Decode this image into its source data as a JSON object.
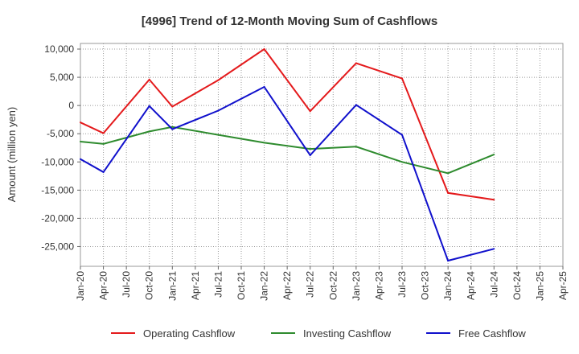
{
  "chart_data": {
    "type": "line",
    "title": "[4996]  Trend of 12-Month Moving Sum of Cashflows",
    "xlabel": "",
    "ylabel": "Amount (million yen)",
    "categories": [
      "Jan-20",
      "Apr-20",
      "Jul-20",
      "Oct-20",
      "Jan-21",
      "Apr-21",
      "Jul-21",
      "Oct-21",
      "Jan-22",
      "Apr-22",
      "Jul-22",
      "Oct-22",
      "Jan-23",
      "Apr-23",
      "Jul-23",
      "Oct-23",
      "Jan-24",
      "Apr-24",
      "Jul-24",
      "Oct-24",
      "Jan-25",
      "Apr-25"
    ],
    "yticks": [
      {
        "value": 10000,
        "label": "10,000"
      },
      {
        "value": 5000,
        "label": "5,000"
      },
      {
        "value": 0,
        "label": "0"
      },
      {
        "value": -5000,
        "label": "-5,000"
      },
      {
        "value": -10000,
        "label": "-10,000"
      },
      {
        "value": -15000,
        "label": "-15,000"
      },
      {
        "value": -20000,
        "label": "-20,000"
      },
      {
        "value": -25000,
        "label": "-25,000"
      }
    ],
    "ylim": [
      -28500,
      11000
    ],
    "grid": true,
    "legend_position": "bottom",
    "series": [
      {
        "name": "Operating Cashflow",
        "color": "#e41a1c",
        "values": [
          -3000,
          -4900,
          null,
          4600,
          -200,
          null,
          4500,
          null,
          10000,
          null,
          -1000,
          null,
          7500,
          null,
          4800,
          null,
          -15500,
          null,
          -16700,
          null,
          null,
          null
        ]
      },
      {
        "name": "Investing Cashflow",
        "color": "#2e8b2e",
        "values": [
          -6400,
          -6800,
          null,
          -4600,
          -3800,
          null,
          -5200,
          null,
          -6600,
          null,
          -7700,
          null,
          -7300,
          null,
          -10000,
          null,
          -12000,
          null,
          -8700,
          null,
          null,
          null
        ]
      },
      {
        "name": "Free Cashflow",
        "color": "#1010cc",
        "values": [
          -9500,
          -11800,
          null,
          -100,
          -4200,
          null,
          -900,
          null,
          3300,
          null,
          -8800,
          null,
          100,
          null,
          -5200,
          null,
          -27500,
          null,
          -25400,
          null,
          null,
          null
        ]
      }
    ]
  }
}
